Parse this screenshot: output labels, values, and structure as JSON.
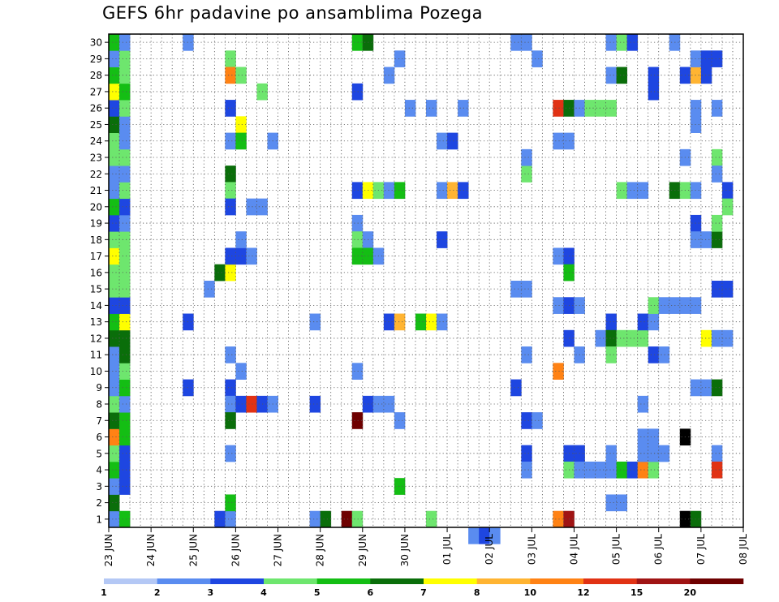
{
  "chart_data": {
    "type": "heatmap",
    "title": "GEFS 6hr padavine po ansamblima Pozega",
    "xlabel": "",
    "ylabel": "",
    "x_ticks": [
      "23 JUN",
      "24 JUN",
      "25 JUN",
      "26 JUN",
      "27 JUN",
      "28 JUN",
      "29 JUN",
      "30 JUN",
      "01 JUL",
      "02 JUL",
      "03 JUL",
      "04 JUL",
      "05 JUL",
      "06 JUL",
      "07 JUL",
      "08 JUL"
    ],
    "y_ticks": [
      1,
      2,
      3,
      4,
      5,
      6,
      7,
      8,
      9,
      10,
      11,
      12,
      13,
      14,
      15,
      16,
      17,
      18,
      19,
      20,
      21,
      22,
      23,
      24,
      25,
      26,
      27,
      28,
      29,
      30
    ],
    "xlim": [
      0,
      60
    ],
    "ylim": [
      0.5,
      30.5
    ],
    "grid": true,
    "colorbar": {
      "labels": [
        "1",
        "2",
        "3",
        "4",
        "5",
        "6",
        "7",
        "8",
        "10",
        "12",
        "15",
        "20"
      ],
      "colors": [
        "#b4c8f5",
        "#5a8cf0",
        "#1e46e1",
        "#6ee66e",
        "#14be14",
        "#0a6e0a",
        "#ffff00",
        "#ffb432",
        "#ff8214",
        "#e13214",
        "#a01414",
        "#6e0000"
      ]
    },
    "cells": [
      [
        0,
        1,
        1
      ],
      [
        1,
        1,
        4
      ],
      [
        0,
        2,
        5
      ],
      [
        0,
        3,
        1
      ],
      [
        1,
        3,
        2
      ],
      [
        0,
        4,
        4
      ],
      [
        1,
        4,
        2
      ],
      [
        0,
        5,
        3
      ],
      [
        1,
        5,
        2
      ],
      [
        0,
        6,
        8
      ],
      [
        1,
        6,
        4
      ],
      [
        0,
        7,
        5
      ],
      [
        1,
        7,
        4
      ],
      [
        0,
        8,
        3
      ],
      [
        1,
        8,
        1
      ],
      [
        0,
        9,
        1
      ],
      [
        1,
        9,
        4
      ],
      [
        0,
        10,
        1
      ],
      [
        1,
        10,
        3
      ],
      [
        0,
        11,
        1
      ],
      [
        1,
        11,
        5
      ],
      [
        0,
        12,
        5
      ],
      [
        1,
        12,
        5
      ],
      [
        0,
        13,
        4
      ],
      [
        1,
        13,
        6
      ],
      [
        0,
        14,
        2
      ],
      [
        1,
        14,
        2
      ],
      [
        0,
        15,
        3
      ],
      [
        1,
        15,
        3
      ],
      [
        0,
        16,
        3
      ],
      [
        1,
        16,
        3
      ],
      [
        0,
        17,
        6
      ],
      [
        1,
        17,
        3
      ],
      [
        0,
        18,
        3
      ],
      [
        1,
        18,
        3
      ],
      [
        0,
        19,
        2
      ],
      [
        1,
        19,
        1
      ],
      [
        0,
        20,
        4
      ],
      [
        1,
        20,
        2
      ],
      [
        0,
        21,
        1
      ],
      [
        1,
        21,
        3
      ],
      [
        0,
        22,
        1
      ],
      [
        1,
        22,
        1
      ],
      [
        0,
        23,
        3
      ],
      [
        1,
        23,
        3
      ],
      [
        0,
        24,
        3
      ],
      [
        1,
        24,
        1
      ],
      [
        0,
        25,
        5
      ],
      [
        1,
        25,
        1
      ],
      [
        0,
        26,
        2
      ],
      [
        1,
        26,
        3
      ],
      [
        0,
        27,
        6
      ],
      [
        1,
        27,
        4
      ],
      [
        0,
        28,
        4
      ],
      [
        1,
        28,
        3
      ],
      [
        0,
        29,
        1
      ],
      [
        1,
        29,
        3
      ],
      [
        0,
        30,
        4
      ],
      [
        1,
        30,
        1
      ],
      [
        7,
        30,
        1
      ],
      [
        7,
        9,
        2
      ],
      [
        7,
        13,
        2
      ],
      [
        9,
        15,
        1
      ],
      [
        10,
        16,
        5
      ],
      [
        11,
        16,
        6
      ],
      [
        10,
        1,
        2
      ],
      [
        11,
        1,
        1
      ],
      [
        11,
        29,
        3
      ],
      [
        11,
        28,
        8
      ],
      [
        12,
        28,
        3
      ],
      [
        11,
        26,
        2
      ],
      [
        12,
        25,
        6
      ],
      [
        11,
        24,
        1
      ],
      [
        12,
        24,
        4
      ],
      [
        11,
        22,
        5
      ],
      [
        11,
        21,
        3
      ],
      [
        11,
        20,
        2
      ],
      [
        13,
        20,
        1
      ],
      [
        14,
        20,
        1
      ],
      [
        11,
        17,
        2
      ],
      [
        12,
        17,
        2
      ],
      [
        13,
        17,
        1
      ],
      [
        12,
        18,
        1
      ],
      [
        12,
        10,
        1
      ],
      [
        11,
        11,
        1
      ],
      [
        11,
        9,
        2
      ],
      [
        11,
        8,
        1
      ],
      [
        12,
        8,
        2
      ],
      [
        13,
        8,
        9
      ],
      [
        14,
        8,
        2
      ],
      [
        15,
        8,
        1
      ],
      [
        11,
        7,
        5
      ],
      [
        11,
        5,
        1
      ],
      [
        11,
        2,
        4
      ],
      [
        14,
        27,
        3
      ],
      [
        15,
        24,
        1
      ],
      [
        19,
        8,
        2
      ],
      [
        19,
        13,
        1
      ],
      [
        19,
        1,
        1
      ],
      [
        20,
        1,
        5
      ],
      [
        23,
        30,
        4
      ],
      [
        24,
        30,
        5
      ],
      [
        23,
        27,
        2
      ],
      [
        23,
        21,
        2
      ],
      [
        24,
        21,
        6
      ],
      [
        25,
        21,
        3
      ],
      [
        26,
        21,
        1
      ],
      [
        27,
        21,
        4
      ],
      [
        23,
        19,
        1
      ],
      [
        23,
        18,
        3
      ],
      [
        24,
        18,
        1
      ],
      [
        23,
        17,
        4
      ],
      [
        24,
        17,
        4
      ],
      [
        25,
        17,
        1
      ],
      [
        23,
        10,
        1
      ],
      [
        24,
        8,
        2
      ],
      [
        25,
        8,
        1
      ],
      [
        26,
        8,
        1
      ],
      [
        23,
        7,
        11
      ],
      [
        22,
        1,
        11
      ],
      [
        23,
        1,
        3
      ],
      [
        27,
        29,
        1
      ],
      [
        26,
        28,
        1
      ],
      [
        28,
        26,
        1
      ],
      [
        30,
        26,
        1
      ],
      [
        33,
        26,
        1
      ],
      [
        26,
        13,
        2
      ],
      [
        27,
        13,
        7
      ],
      [
        29,
        13,
        4
      ],
      [
        30,
        13,
        6
      ],
      [
        31,
        13,
        1
      ],
      [
        27,
        7,
        1
      ],
      [
        27,
        3,
        4
      ],
      [
        30,
        1,
        3
      ],
      [
        31,
        24,
        1
      ],
      [
        32,
        24,
        2
      ],
      [
        31,
        21,
        1
      ],
      [
        32,
        21,
        7
      ],
      [
        33,
        21,
        2
      ],
      [
        31,
        18,
        2
      ],
      [
        34,
        0,
        1
      ],
      [
        35,
        0,
        2
      ],
      [
        36,
        0,
        1
      ],
      [
        38,
        30,
        1
      ],
      [
        39,
        30,
        1
      ],
      [
        40,
        29,
        1
      ],
      [
        39,
        22,
        3
      ],
      [
        39,
        23,
        1
      ],
      [
        38,
        15,
        1
      ],
      [
        39,
        15,
        1
      ],
      [
        38,
        9,
        2
      ],
      [
        39,
        11,
        1
      ],
      [
        39,
        7,
        2
      ],
      [
        40,
        7,
        1
      ],
      [
        39,
        5,
        2
      ],
      [
        39,
        4,
        1
      ],
      [
        42,
        26,
        9
      ],
      [
        43,
        26,
        5
      ],
      [
        44,
        26,
        1
      ],
      [
        45,
        26,
        3
      ],
      [
        46,
        26,
        3
      ],
      [
        47,
        26,
        3
      ],
      [
        42,
        24,
        1
      ],
      [
        43,
        24,
        1
      ],
      [
        42,
        17,
        1
      ],
      [
        43,
        17,
        2
      ],
      [
        43,
        16,
        4
      ],
      [
        42,
        14,
        1
      ],
      [
        43,
        14,
        2
      ],
      [
        44,
        14,
        1
      ],
      [
        43,
        12,
        2
      ],
      [
        44,
        11,
        1
      ],
      [
        42,
        10,
        8
      ],
      [
        43,
        5,
        2
      ],
      [
        44,
        5,
        2
      ],
      [
        43,
        4,
        3
      ],
      [
        44,
        4,
        1
      ],
      [
        45,
        4,
        1
      ],
      [
        42,
        1,
        8
      ],
      [
        43,
        1,
        10
      ],
      [
        47,
        28,
        1
      ],
      [
        48,
        28,
        5
      ],
      [
        47,
        30,
        1
      ],
      [
        48,
        30,
        3
      ],
      [
        49,
        30,
        2
      ],
      [
        48,
        21,
        3
      ],
      [
        49,
        21,
        1
      ],
      [
        50,
        21,
        1
      ],
      [
        47,
        13,
        2
      ],
      [
        46,
        12,
        1
      ],
      [
        47,
        12,
        5
      ],
      [
        48,
        12,
        3
      ],
      [
        49,
        12,
        3
      ],
      [
        50,
        12,
        3
      ],
      [
        47,
        11,
        3
      ],
      [
        47,
        5,
        1
      ],
      [
        46,
        4,
        1
      ],
      [
        47,
        4,
        1
      ],
      [
        48,
        4,
        4
      ],
      [
        49,
        4,
        2
      ],
      [
        50,
        4,
        8
      ],
      [
        51,
        4,
        3
      ],
      [
        47,
        2,
        1
      ],
      [
        48,
        2,
        1
      ],
      [
        51,
        28,
        2
      ],
      [
        51,
        27,
        2
      ],
      [
        50,
        13,
        2
      ],
      [
        51,
        13,
        1
      ],
      [
        51,
        11,
        2
      ],
      [
        52,
        11,
        1
      ],
      [
        50,
        8,
        1
      ],
      [
        50,
        6,
        1
      ],
      [
        51,
        6,
        1
      ],
      [
        50,
        5,
        1
      ],
      [
        51,
        5,
        1
      ],
      [
        52,
        5,
        1
      ],
      [
        51,
        14,
        3
      ],
      [
        52,
        14,
        1
      ],
      [
        53,
        14,
        1
      ],
      [
        54,
        14,
        1
      ],
      [
        55,
        14,
        1
      ],
      [
        53,
        30,
        1
      ],
      [
        54,
        28,
        2
      ],
      [
        55,
        28,
        7
      ],
      [
        56,
        28,
        2
      ],
      [
        55,
        29,
        1
      ],
      [
        55,
        26,
        1
      ],
      [
        55,
        25,
        1
      ],
      [
        54,
        23,
        1
      ],
      [
        53,
        21,
        5
      ],
      [
        54,
        21,
        3
      ],
      [
        55,
        21,
        1
      ],
      [
        55,
        19,
        2
      ],
      [
        55,
        18,
        1
      ],
      [
        56,
        18,
        1
      ],
      [
        57,
        18,
        5
      ],
      [
        57,
        19,
        3
      ],
      [
        56,
        12,
        6
      ],
      [
        57,
        12,
        1
      ],
      [
        58,
        12,
        1
      ],
      [
        55,
        9,
        1
      ],
      [
        56,
        9,
        1
      ],
      [
        57,
        9,
        5
      ],
      [
        54,
        6,
        12
      ],
      [
        54,
        1,
        12
      ],
      [
        55,
        1,
        5
      ],
      [
        56,
        29,
        2
      ],
      [
        57,
        29,
        2
      ],
      [
        57,
        23,
        3
      ],
      [
        57,
        22,
        1
      ],
      [
        57,
        15,
        2
      ],
      [
        57,
        5,
        1
      ],
      [
        57,
        4,
        9
      ],
      [
        57,
        26,
        1
      ],
      [
        58,
        21,
        2
      ],
      [
        58,
        20,
        3
      ],
      [
        58,
        15,
        2
      ]
    ]
  }
}
